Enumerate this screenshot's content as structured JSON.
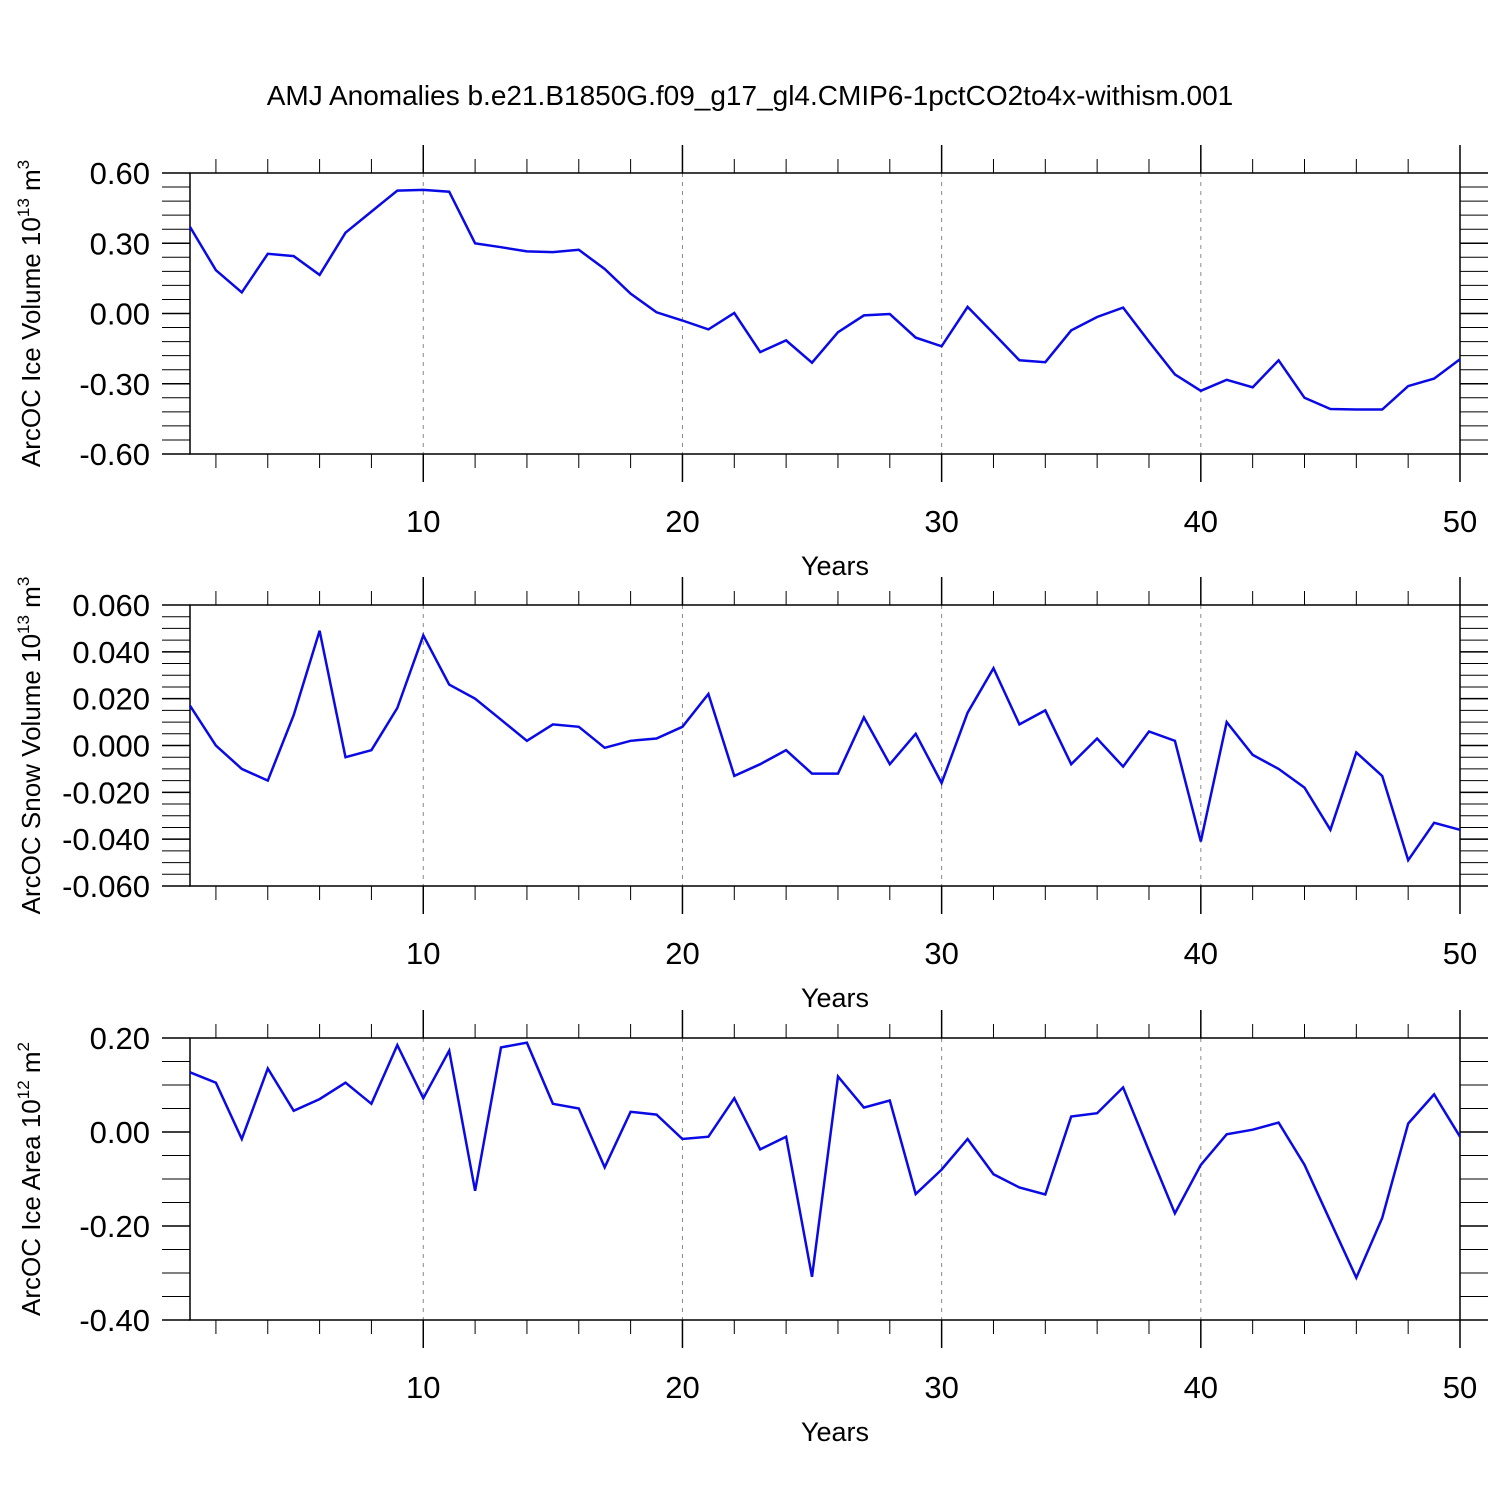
{
  "title": "AMJ Anomalies b.e21.B1850G.f09_g17_gl4.CMIP6-1pctCO2to4x-withism.001",
  "colors": {
    "line": "#0a0ae6",
    "axis": "#000000",
    "grid": "#888888"
  },
  "chart_data": [
    {
      "type": "line",
      "title": "AMJ Anomalies b.e21.B1850G.f09_g17_gl4.CMIP6-1pctCO2to4x-withism.001",
      "xlabel": "Years",
      "ylabel": {
        "prefix": "ArcOC Ice Volume 10",
        "exp": "13",
        "unit": " m",
        "unit_exp": "3"
      },
      "xlim": [
        1,
        50
      ],
      "ylim": [
        -0.6,
        0.6
      ],
      "xticks": [
        10,
        20,
        30,
        40,
        50
      ],
      "xtick_labels": [
        "10",
        "20",
        "30",
        "40",
        "50"
      ],
      "yticks": [
        -0.6,
        -0.3,
        0.0,
        0.3,
        0.6
      ],
      "ytick_labels": [
        "-0.60",
        "-0.30",
        "0.00",
        "0.30",
        "0.60"
      ],
      "y_minor_step": 0.06,
      "grid": "vertical dashed at major x ticks",
      "x": [
        1,
        2,
        3,
        4,
        5,
        6,
        7,
        8,
        9,
        10,
        11,
        12,
        13,
        14,
        15,
        16,
        17,
        18,
        19,
        20,
        21,
        22,
        23,
        24,
        25,
        26,
        27,
        28,
        29,
        30,
        31,
        32,
        33,
        34,
        35,
        36,
        37,
        38,
        39,
        40,
        41,
        42,
        43,
        44,
        45,
        46,
        47,
        48,
        49,
        50
      ],
      "values": [
        0.37,
        0.185,
        0.09,
        0.255,
        0.245,
        0.165,
        0.345,
        0.435,
        0.525,
        0.528,
        0.52,
        0.3,
        0.283,
        0.265,
        0.262,
        0.272,
        0.19,
        0.085,
        0.005,
        -0.03,
        -0.068,
        0.002,
        -0.165,
        -0.115,
        -0.21,
        -0.08,
        -0.008,
        -0.002,
        -0.103,
        -0.14,
        0.028,
        -0.085,
        -0.2,
        -0.208,
        -0.072,
        -0.015,
        0.025,
        -0.12,
        -0.26,
        -0.33,
        -0.283,
        -0.315,
        -0.2,
        -0.36,
        -0.408,
        -0.41,
        -0.41,
        -0.31,
        -0.278,
        -0.195
      ]
    },
    {
      "type": "line",
      "xlabel": "Years",
      "ylabel": {
        "prefix": "ArcOC Snow Volume 10",
        "exp": "13",
        "unit": " m",
        "unit_exp": "3"
      },
      "xlim": [
        1,
        50
      ],
      "ylim": [
        -0.06,
        0.06
      ],
      "xticks": [
        10,
        20,
        30,
        40,
        50
      ],
      "xtick_labels": [
        "10",
        "20",
        "30",
        "40",
        "50"
      ],
      "yticks": [
        -0.06,
        -0.04,
        -0.02,
        0.0,
        0.02,
        0.04,
        0.06
      ],
      "ytick_labels": [
        "-0.060",
        "-0.040",
        "-0.020",
        "0.000",
        "0.020",
        "0.040",
        "0.060"
      ],
      "y_minor_step": 0.005,
      "grid": "vertical dashed at major x ticks",
      "x": [
        1,
        2,
        3,
        4,
        5,
        6,
        7,
        8,
        9,
        10,
        11,
        12,
        13,
        14,
        15,
        16,
        17,
        18,
        19,
        20,
        21,
        22,
        23,
        24,
        25,
        26,
        27,
        28,
        29,
        30,
        31,
        32,
        33,
        34,
        35,
        36,
        37,
        38,
        39,
        40,
        41,
        42,
        43,
        44,
        45,
        46,
        47,
        48,
        49,
        50
      ],
      "values": [
        0.017,
        0.0,
        -0.01,
        -0.015,
        0.013,
        0.049,
        -0.005,
        -0.002,
        0.016,
        0.047,
        0.026,
        0.02,
        0.011,
        0.002,
        0.009,
        0.008,
        -0.001,
        0.002,
        0.003,
        0.008,
        0.022,
        -0.013,
        -0.008,
        -0.002,
        -0.012,
        -0.012,
        0.012,
        -0.008,
        0.005,
        -0.016,
        0.014,
        0.033,
        0.009,
        0.015,
        -0.008,
        0.003,
        -0.009,
        0.006,
        0.002,
        -0.041,
        0.01,
        -0.004,
        -0.01,
        -0.018,
        -0.036,
        -0.003,
        -0.013,
        -0.049,
        -0.033,
        -0.036
      ]
    },
    {
      "type": "line",
      "xlabel": "Years",
      "ylabel": {
        "prefix": "ArcOC Ice Area 10",
        "exp": "12",
        "unit": " m",
        "unit_exp": "2"
      },
      "xlim": [
        1,
        50
      ],
      "ylim": [
        -0.4,
        0.2
      ],
      "xticks": [
        10,
        20,
        30,
        40,
        50
      ],
      "xtick_labels": [
        "10",
        "20",
        "30",
        "40",
        "50"
      ],
      "yticks": [
        -0.4,
        -0.2,
        0.0,
        0.2
      ],
      "ytick_labels": [
        "-0.40",
        "-0.20",
        "0.00",
        "0.20"
      ],
      "y_minor_step": 0.05,
      "grid": "vertical dashed at major x ticks",
      "x": [
        1,
        2,
        3,
        4,
        5,
        6,
        7,
        8,
        9,
        10,
        11,
        12,
        13,
        14,
        15,
        16,
        17,
        18,
        19,
        20,
        21,
        22,
        23,
        24,
        25,
        26,
        27,
        28,
        29,
        30,
        31,
        32,
        33,
        34,
        35,
        36,
        37,
        38,
        39,
        40,
        41,
        42,
        43,
        44,
        45,
        46,
        47,
        48,
        49,
        50
      ],
      "values": [
        0.127,
        0.105,
        -0.015,
        0.135,
        0.045,
        0.07,
        0.105,
        0.06,
        0.185,
        0.072,
        0.173,
        -0.125,
        0.18,
        0.19,
        0.06,
        0.05,
        -0.075,
        0.043,
        0.037,
        -0.015,
        -0.01,
        0.072,
        -0.037,
        -0.01,
        -0.308,
        0.118,
        0.052,
        0.067,
        -0.132,
        -0.08,
        -0.015,
        -0.09,
        -0.118,
        -0.133,
        0.033,
        0.04,
        0.095,
        -0.04,
        -0.173,
        -0.07,
        -0.005,
        0.005,
        0.02,
        -0.07,
        -0.19,
        -0.31,
        -0.183,
        0.018,
        0.08,
        -0.01
      ]
    }
  ]
}
